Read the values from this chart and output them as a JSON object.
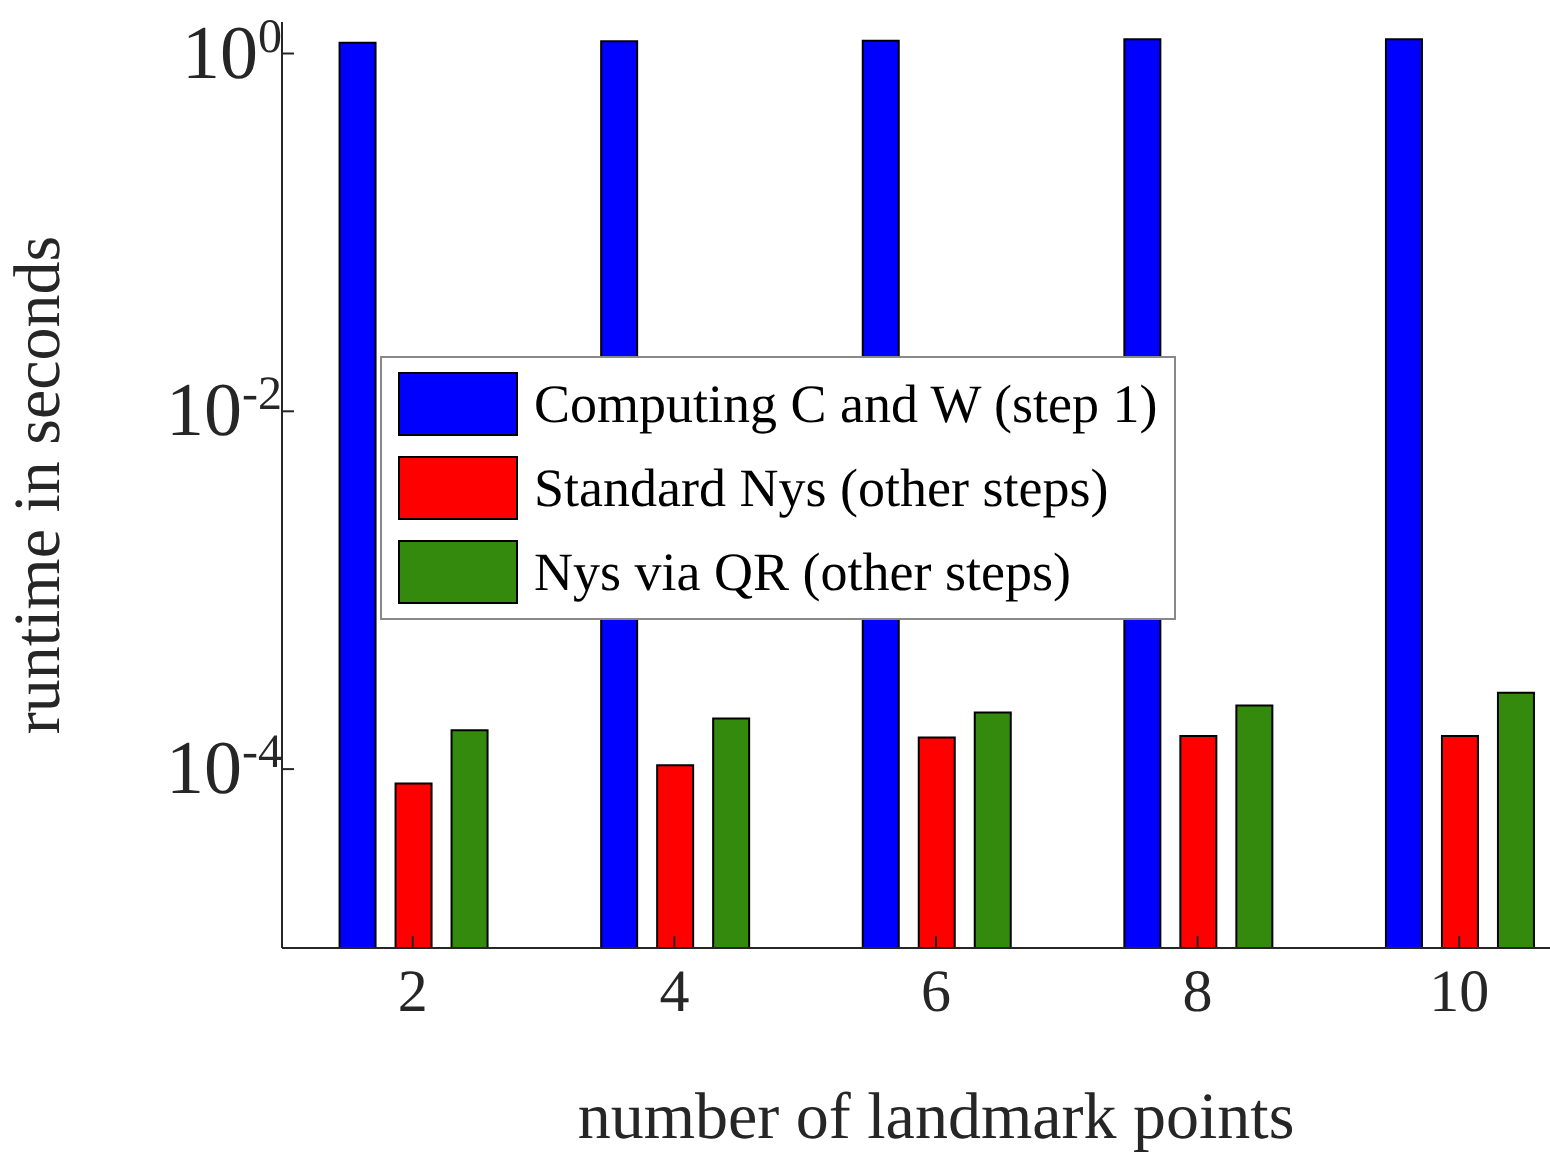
{
  "chart_data": {
    "type": "bar",
    "xlabel": "number of landmark points",
    "ylabel": "runtime in seconds",
    "categories": [
      "2",
      "4",
      "6",
      "8",
      "10"
    ],
    "series": [
      {
        "name": "Computing C and W (step 1)",
        "color": "#0000ff",
        "values": [
          1.15,
          1.17,
          1.18,
          1.2,
          1.2
        ]
      },
      {
        "name": "Standard Nys (other steps)",
        "color": "#ff0000",
        "values": [
          8.3e-05,
          0.000105,
          0.00015,
          0.000153,
          0.000153
        ]
      },
      {
        "name": "Nys via QR (other steps)",
        "color": "#348a0c",
        "values": [
          0.000165,
          0.000192,
          0.000207,
          0.000227,
          0.000267
        ]
      }
    ],
    "log": "y",
    "ylim": [
      1e-05,
      1.5
    ],
    "yticks": [
      {
        "value": 0.0001,
        "label": "10$^{-4}$"
      },
      {
        "value": 0.01,
        "label": "10$^{-2}$"
      },
      {
        "value": 1,
        "label": "10$^{0}$"
      }
    ],
    "legend": "center"
  }
}
